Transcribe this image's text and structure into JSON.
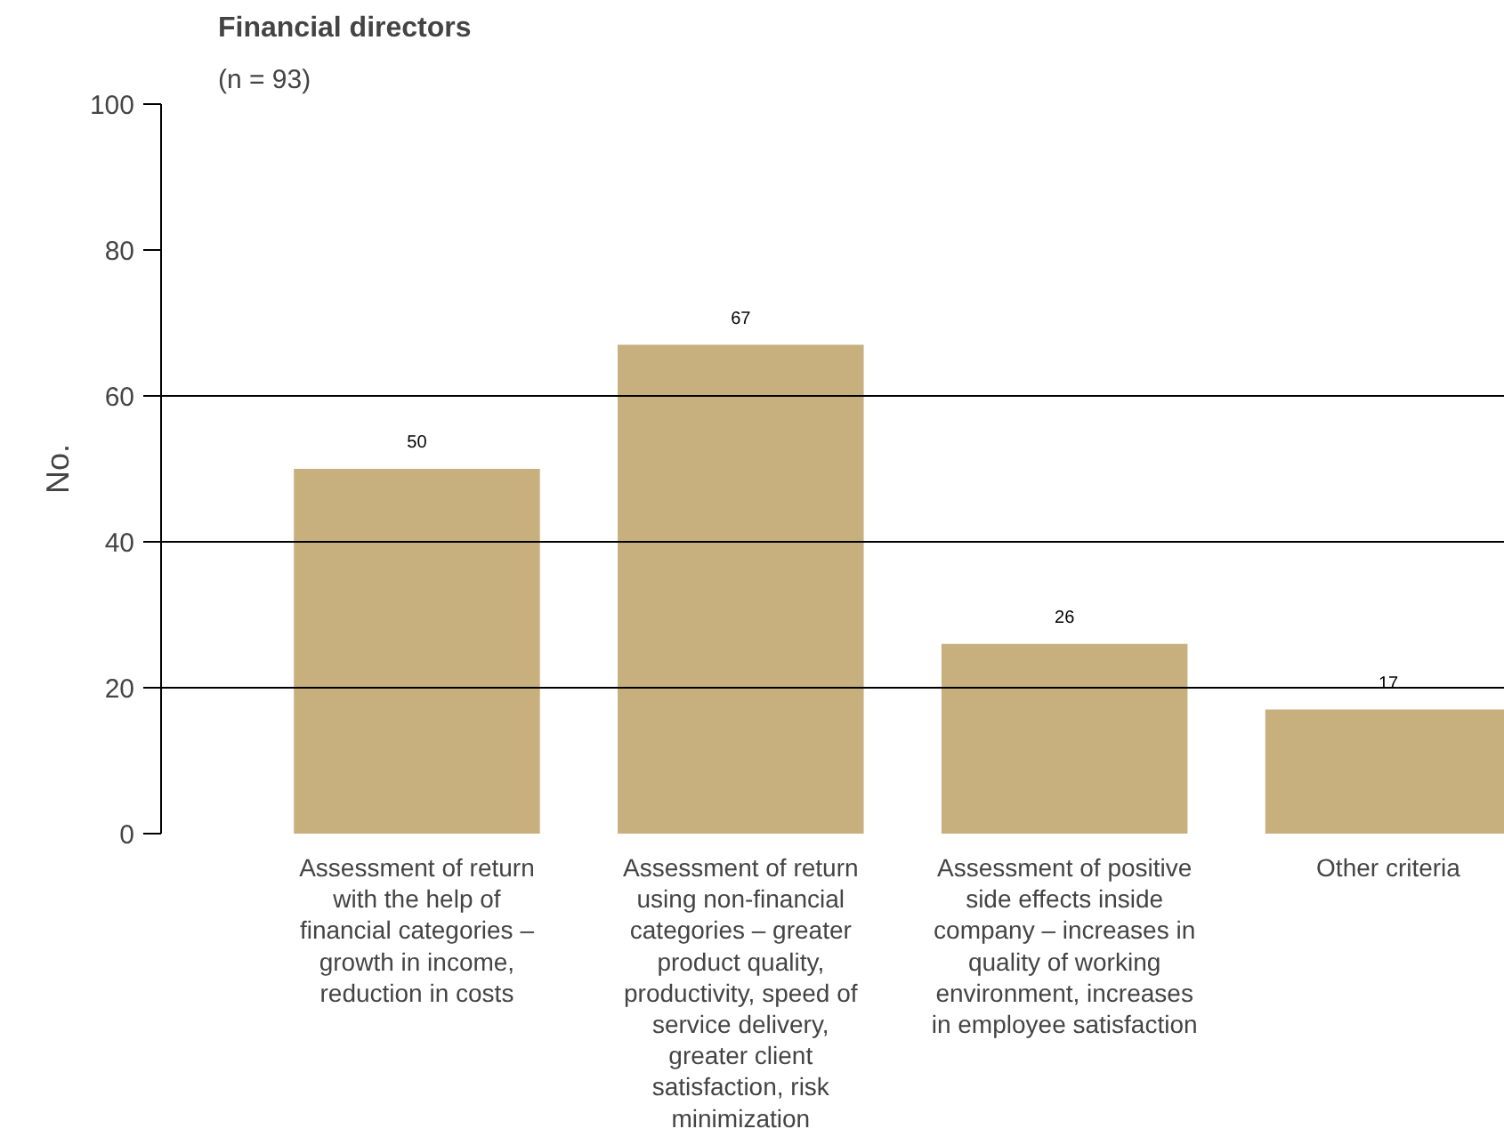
{
  "chart_data": {
    "type": "bar",
    "title": "Financial directors",
    "subtitle": "(n = 93)",
    "ylabel": "No.",
    "categories": [
      "Assessment of return with the help of financial categories – growth in income, reduction in costs",
      "Assessment of return using non-financial categories – greater product quality, productivity, speed of service delivery, greater client satisfaction, risk minimization",
      "Assessment of positive side effects inside company – increases in quality of working environment, increases in employee satisfaction",
      "Other criteria"
    ],
    "values": [
      50,
      67,
      26,
      17
    ],
    "color": "#c8b07e",
    "data_labels": true,
    "ylim": [
      0,
      100
    ],
    "yticks": [
      0,
      20,
      40,
      60,
      80,
      100
    ],
    "grid": false,
    "ref_lines": [
      {
        "axis": "y",
        "value": 20,
        "color": "#000000"
      },
      {
        "axis": "y",
        "value": 40,
        "color": "#000000"
      },
      {
        "axis": "y",
        "value": 60,
        "color": "#000000"
      }
    ]
  }
}
